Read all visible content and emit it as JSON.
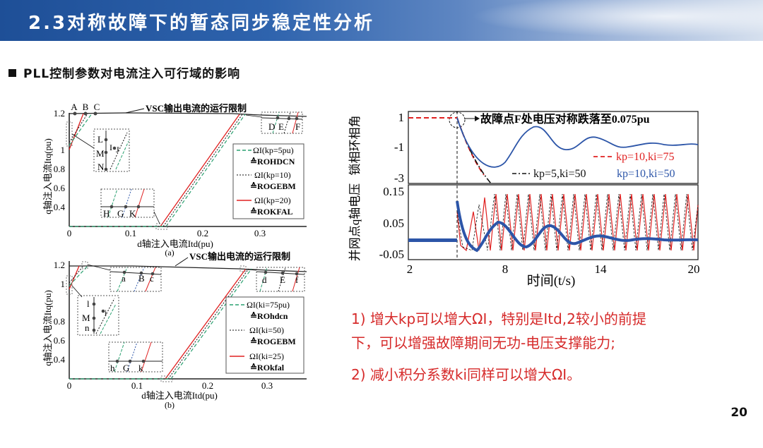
{
  "header": {
    "title": "2.3对称故障下的暂态同步稳定性分析"
  },
  "section": {
    "heading": "PLL控制参数对电流注入可行域的影响"
  },
  "figA": {
    "ylabel": "q轴注入电流Itq(pu)",
    "xlabel": "d轴注入电流Itd(pu)",
    "caption": "(a)",
    "limit_label": "VSC输出电流的运行限制",
    "yticks": [
      "0",
      "0.4",
      "0.6",
      "0.8",
      "1",
      "1.2"
    ],
    "xticks": [
      "0",
      "0.1",
      "0.2",
      "0.3"
    ],
    "points_top": [
      "A",
      "B",
      "C"
    ],
    "points_right": [
      "D",
      "E",
      "F"
    ],
    "points_mid": [
      "L",
      "M",
      "N",
      "I",
      "J"
    ],
    "points_bottom": [
      "H",
      "G",
      "K"
    ],
    "legend": [
      {
        "name": "ΩI(kp=5pu)",
        "sub": "≙ROHDCN"
      },
      {
        "name": "ΩI(kp=10)",
        "sub": "≙ROGEBM"
      },
      {
        "name": "ΩI(kp=20)",
        "sub": "≙ROKFAL"
      }
    ]
  },
  "figB": {
    "ylabel": "q轴注入电流Itq(pu)",
    "xlabel": "d轴注入电流Itd(pu)",
    "caption": "(b)",
    "limit_label": "VSC输出电流的运行限制",
    "yticks": [
      "0",
      "0.4",
      "0.6",
      "0.8",
      "1",
      "1.2"
    ],
    "xticks": [
      "0",
      "0.1",
      "0.2",
      "0.3"
    ],
    "points_top": [
      "a",
      "B",
      "c"
    ],
    "points_right": [
      "d",
      "E",
      "f"
    ],
    "points_mid": [
      "l",
      "M",
      "n",
      "i"
    ],
    "points_bottom": [
      "h",
      "G",
      "k"
    ],
    "legend": [
      {
        "name": "ΩI(ki=75pu)",
        "sub": "≙ROhdcn"
      },
      {
        "name": "ΩI(ki=50)",
        "sub": "≙ROGEBM"
      },
      {
        "name": "ΩI(ki=25)",
        "sub": "≙ROkfal"
      }
    ]
  },
  "figC": {
    "annotation": "故障点F处电压对称跌落至0.075pu",
    "upper_ylabel": "锁相环相角",
    "upper_yticks": [
      "1",
      "-1",
      "-3"
    ],
    "lower_ylabel": "并网点q轴电压",
    "lower_yticks": [
      "0.15",
      "0.05",
      "-0.05"
    ],
    "xticks": [
      "2",
      "8",
      "14",
      "20"
    ],
    "xlabel": "时间(t/s)",
    "legend": [
      {
        "name": "kp=10,ki=75",
        "color": "#e02020"
      },
      {
        "name": "kp=5,ki=50",
        "color": "#111111"
      },
      {
        "name": "kp=10,ki=50",
        "color": "#2c55a8"
      }
    ]
  },
  "notes": {
    "line1": "1) 增大kp可以增大ΩI，特别是Itd,2较小的前提",
    "line2": "下，可以增强故障期间无功-电压支撑能力;",
    "line3": "2) 减小积分系数ki同样可以增大ΩI。"
  },
  "page_number": "20",
  "colors": {
    "red": "#e02020",
    "green": "#2aa070",
    "blue": "#2c55a8",
    "banner": "#2e63ad"
  }
}
